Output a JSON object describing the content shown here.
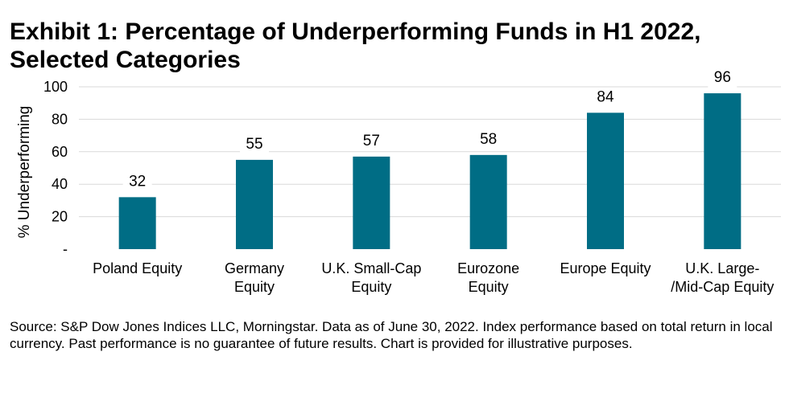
{
  "title": "Exhibit 1: Percentage of Underperforming Funds in H1 2022, Selected Categories",
  "source": "Source: S&P Dow Jones Indices LLC, Morningstar.  Data as of June 30, 2022.  Index performance based on total return in local currency.  Past performance is no guarantee of future results.  Chart is provided for illustrative purposes.",
  "colors": {
    "bar": "#006d85",
    "grid": "#d9d9d9",
    "label_bg": "#ffffff"
  },
  "chart_data": {
    "type": "bar",
    "title": "Exhibit 1: Percentage of Underperforming Funds in H1 2022, Selected Categories",
    "xlabel": "",
    "ylabel": "% Underperforming",
    "ylim": [
      0,
      100
    ],
    "yticks": [
      0,
      20,
      40,
      60,
      80,
      100
    ],
    "ytick_labels": [
      "-",
      "20",
      "40",
      "60",
      "80",
      "100"
    ],
    "grid": true,
    "categories": [
      [
        "Poland Equity"
      ],
      [
        "Germany",
        "Equity"
      ],
      [
        "U.K. Small-Cap",
        "Equity"
      ],
      [
        "Eurozone",
        "Equity"
      ],
      [
        "Europe Equity"
      ],
      [
        "U.K. Large-",
        "/Mid-Cap Equity"
      ]
    ],
    "values": [
      32,
      55,
      57,
      58,
      84,
      96
    ],
    "data_labels": [
      "32",
      "55",
      "57",
      "58",
      "84",
      "96"
    ]
  }
}
